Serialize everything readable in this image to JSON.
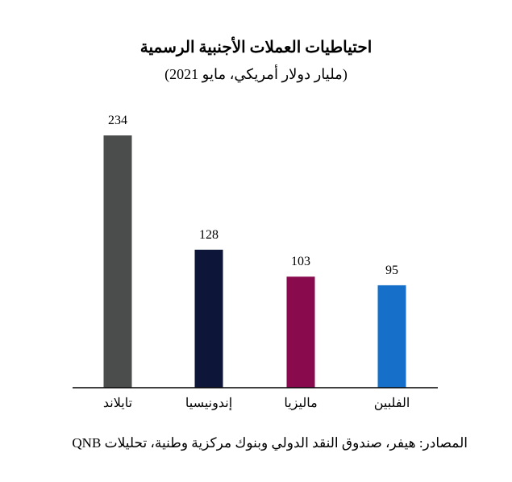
{
  "chart_data": {
    "type": "bar",
    "title": "احتياطيات العملات الأجنبية الرسمية",
    "subtitle": "(مليار دولار أمريكي، مايو 2021)",
    "categories": [
      "تايلاند",
      "إندونيسيا",
      "ماليزيا",
      "الفلبين"
    ],
    "values": [
      234,
      128,
      103,
      95
    ],
    "colors": [
      "#4a4d4c",
      "#0d1639",
      "#8a0a4e",
      "#1670c9"
    ],
    "ylim": [
      0,
      234
    ],
    "xlabel": "",
    "ylabel": "",
    "legend": "none",
    "grid": false
  },
  "source": "المصادر: هيفر، صندوق النقد الدولي وبنوك مركزية وطنية، تحليلات QNB"
}
